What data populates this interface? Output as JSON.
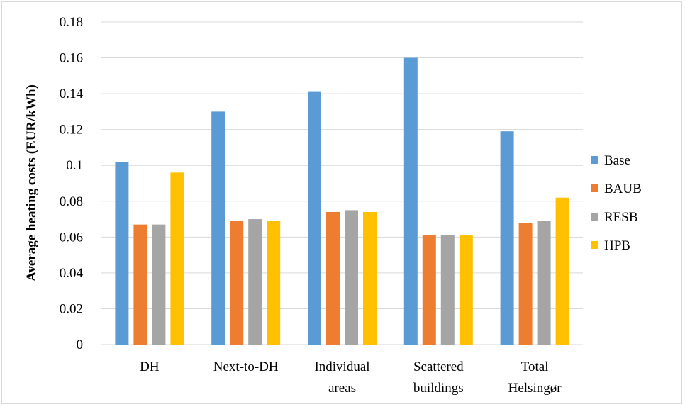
{
  "chart_data": {
    "type": "bar",
    "title": "",
    "xlabel": "",
    "ylabel": "Average heating costs (EUR/kWh)",
    "ylim": [
      0,
      0.18
    ],
    "yticks": [
      "0",
      "0.02",
      "0.04",
      "0.06",
      "0.08",
      "0.1",
      "0.12",
      "0.14",
      "0.16",
      "0.18"
    ],
    "categories": [
      [
        "DH"
      ],
      [
        "Next-to-DH"
      ],
      [
        "Individual",
        "areas"
      ],
      [
        "Scattered",
        "buildings"
      ],
      [
        "Total",
        "Helsingør"
      ]
    ],
    "series": [
      {
        "name": "Base",
        "color": "#5b9bd5",
        "values": [
          0.102,
          0.13,
          0.141,
          0.16,
          0.119
        ]
      },
      {
        "name": "BAUB",
        "color": "#ed7d31",
        "values": [
          0.067,
          0.069,
          0.074,
          0.061,
          0.068
        ]
      },
      {
        "name": "RESB",
        "color": "#a5a5a5",
        "values": [
          0.067,
          0.07,
          0.075,
          0.061,
          0.069
        ]
      },
      {
        "name": "HPB",
        "color": "#ffc000",
        "values": [
          0.096,
          0.069,
          0.074,
          0.061,
          0.082
        ]
      }
    ],
    "grid": true,
    "legend_position": "right"
  }
}
